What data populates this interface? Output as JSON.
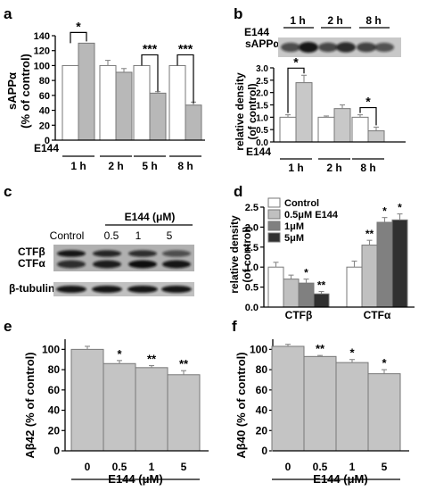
{
  "panels": {
    "a": {
      "letter": "a",
      "ylabel_line1": "sAPPα",
      "ylabel_line2": "(% of control)",
      "treat_label": "E144",
      "minus": "-",
      "plus": "+",
      "y_ticks": [
        "0",
        "20",
        "40",
        "60",
        "80",
        "100",
        "120",
        "140"
      ]
    },
    "b": {
      "letter": "b",
      "treat_label": "E144",
      "minus": "-",
      "plus": "+",
      "blot_label": "sAPPα",
      "ylabel_line1": "relative density",
      "ylabel_line2": "(of control)",
      "y_ticks": [
        "0.0",
        "0.5",
        "1.0",
        "1.5",
        "2.0",
        "2.5",
        "3.0"
      ]
    },
    "c": {
      "letter": "c",
      "treat_header": "E144 (μM)",
      "lanes": [
        "Control",
        "0.5",
        "1",
        "5"
      ],
      "band_ctfb": "CTFβ",
      "band_ctfa": "CTFα",
      "band_tubulin": "β-tubulin"
    },
    "d": {
      "letter": "d",
      "ylabel_line1": "relative density",
      "ylabel_line2": "(of control)",
      "y_ticks": [
        "0.0",
        "0.5",
        "1.0",
        "1.5",
        "2.0",
        "2.5"
      ]
    },
    "e": {
      "letter": "e",
      "ylabel": "Aβ42 (% of control)",
      "xlabel": "E144 (μM)",
      "y_ticks": [
        "0",
        "20",
        "40",
        "60",
        "80",
        "100"
      ]
    },
    "f": {
      "letter": "f",
      "ylabel": "Aβ40 (% of control)",
      "xlabel": "E144 (μM)",
      "y_ticks": [
        "0",
        "20",
        "40",
        "60",
        "80",
        "100"
      ]
    }
  },
  "chart_data": [
    {
      "panel": "a",
      "type": "bar",
      "categories": [
        "1 h",
        "2 h",
        "5 h",
        "8 h"
      ],
      "series": [
        {
          "name": "-",
          "values": [
            100,
            100,
            100,
            100
          ],
          "errors": [
            0,
            7,
            0,
            0
          ]
        },
        {
          "name": "+",
          "values": [
            130,
            91,
            63,
            47
          ],
          "errors": [
            0,
            5,
            2,
            4
          ]
        }
      ],
      "significance": [
        "*",
        "",
        "***",
        "***"
      ],
      "ylim": [
        0,
        140
      ]
    },
    {
      "panel": "b",
      "type": "bar",
      "categories": [
        "1 h",
        "2 h",
        "8 h"
      ],
      "series": [
        {
          "name": "-",
          "values": [
            1.0,
            1.0,
            1.0
          ],
          "errors": [
            0.1,
            0.05,
            0.1
          ]
        },
        {
          "name": "+",
          "values": [
            2.4,
            1.35,
            0.45
          ],
          "errors": [
            0.3,
            0.15,
            0.15
          ]
        }
      ],
      "significance": [
        "*",
        "",
        "*"
      ],
      "ylim": [
        0,
        3.0
      ]
    },
    {
      "panel": "d",
      "type": "bar",
      "categories": [
        "CTFβ",
        "CTFα"
      ],
      "series": [
        {
          "name": "Control",
          "color": "#ffffff",
          "values": [
            1.0,
            1.0
          ],
          "errors": [
            0.12,
            0.15
          ]
        },
        {
          "name": "0.5μM E144",
          "color": "#c0c0c0",
          "values": [
            0.7,
            1.55
          ],
          "errors": [
            0.1,
            0.12
          ]
        },
        {
          "name": "1μM",
          "color": "#808080",
          "values": [
            0.6,
            2.12
          ],
          "errors": [
            0.1,
            0.12
          ]
        },
        {
          "name": "5μM",
          "color": "#303030",
          "values": [
            0.33,
            2.18
          ],
          "errors": [
            0.06,
            0.15
          ]
        }
      ],
      "significance": [
        [
          "",
          "",
          "*",
          "**"
        ],
        [
          "",
          "**",
          "*",
          "*"
        ]
      ],
      "legend": "top-left",
      "ylim": [
        0,
        2.5
      ]
    },
    {
      "panel": "e",
      "type": "bar",
      "categories": [
        "0",
        "0.5",
        "1",
        "5"
      ],
      "values": [
        100,
        86,
        82,
        75
      ],
      "errors": [
        3,
        3,
        2,
        4
      ],
      "significance": [
        "",
        "*",
        "**",
        "**"
      ],
      "xlabel": "E144 (μM)",
      "ylabel": "Aβ42 (% of control)",
      "ylim": [
        0,
        110
      ]
    },
    {
      "panel": "f",
      "type": "bar",
      "categories": [
        "0",
        "0.5",
        "1",
        "5"
      ],
      "values": [
        103,
        93,
        87,
        76
      ],
      "errors": [
        2,
        1,
        3,
        4
      ],
      "significance": [
        "",
        "**",
        "*",
        "*"
      ],
      "xlabel": "E144 (μM)",
      "ylabel": "Aβ40 (% of control)",
      "ylim": [
        0,
        110
      ]
    }
  ]
}
